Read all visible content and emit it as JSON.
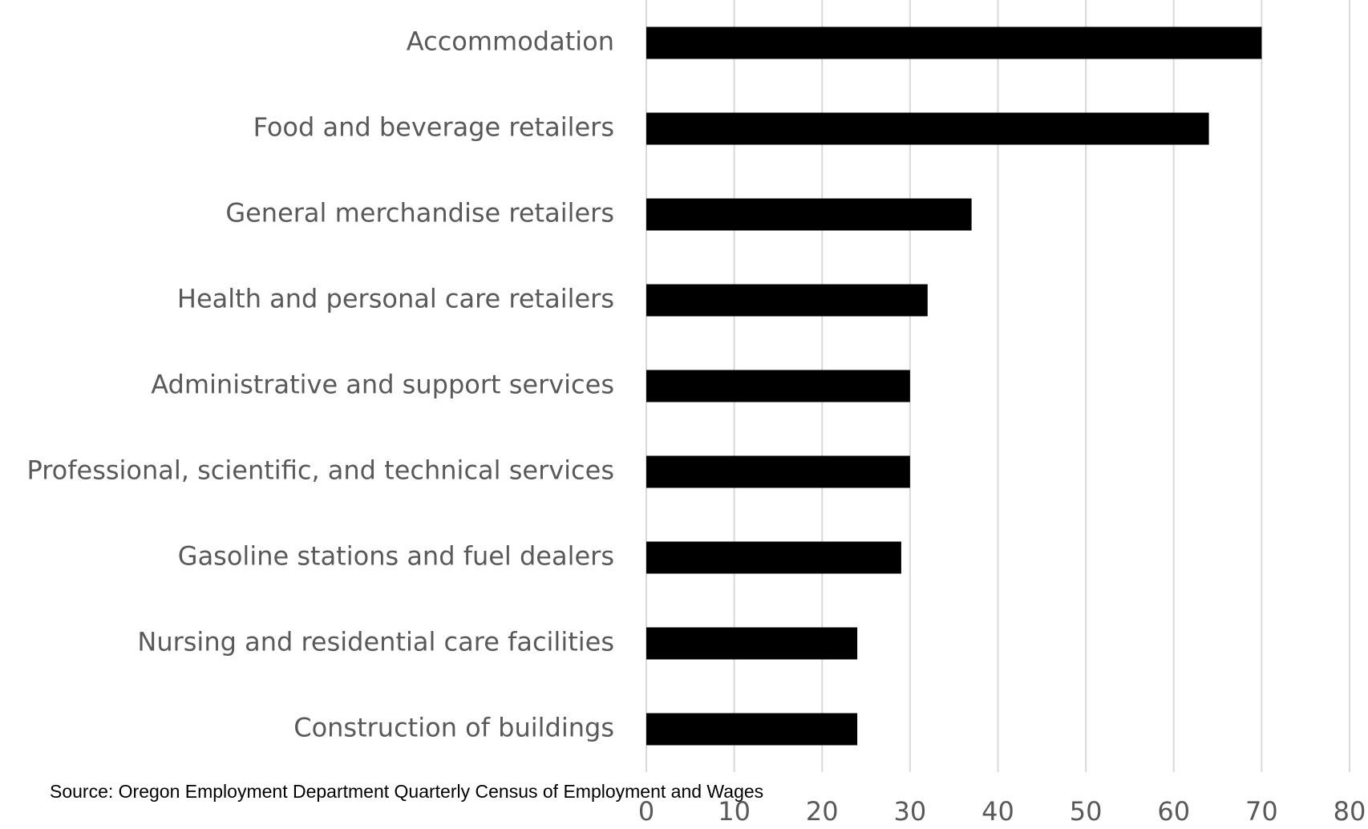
{
  "chart_data": {
    "type": "bar",
    "orientation": "horizontal",
    "categories": [
      "Accommodation",
      "Food and beverage retailers",
      "General merchandise retailers",
      "Health and personal care retailers",
      "Administrative and support services",
      "Professional, scientific, and technical services",
      "Gasoline stations and fuel dealers",
      "Nursing and residential care facilities",
      "Construction of buildings"
    ],
    "values": [
      70,
      64,
      37,
      32,
      30,
      30,
      29,
      24,
      24
    ],
    "color": "#000000",
    "xlim": [
      0,
      80
    ],
    "xticks": [
      0,
      10,
      20,
      30,
      40,
      50,
      60,
      70,
      80
    ],
    "grid": true,
    "source": "Source: Oregon Employment Department Quarterly Census of Employment and Wages"
  }
}
